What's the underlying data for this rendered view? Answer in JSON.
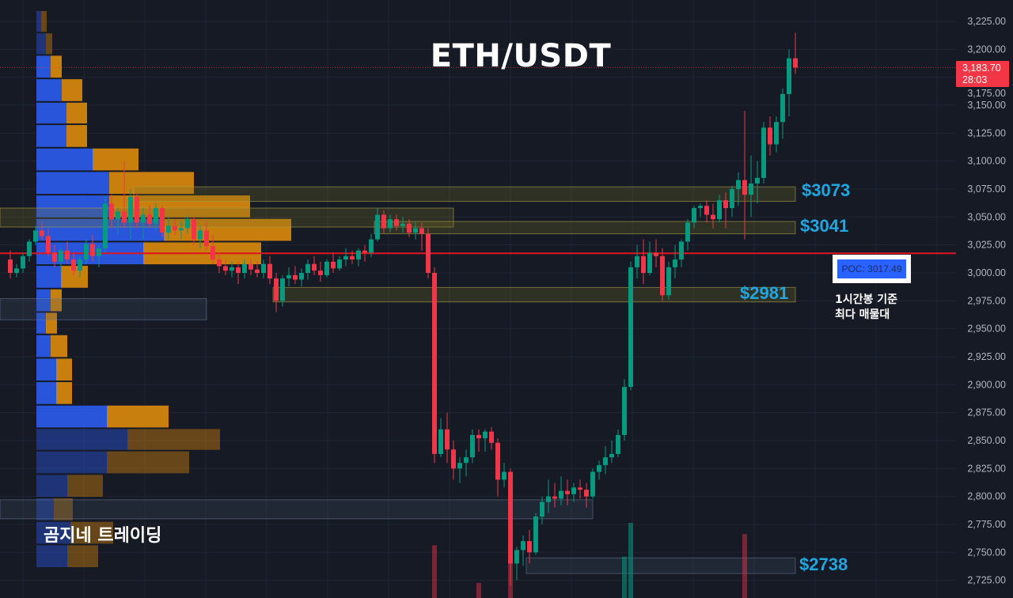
{
  "title": "ETH/USDT",
  "brand": "곰지네 트레이딩",
  "colors": {
    "background": "#161a25",
    "up": "#089981",
    "down": "#f23645",
    "poc_line": "#e0141e",
    "zone_label": "#1ea7e1",
    "buy_volume": "#2855d9",
    "sell_volume": "#c97f0e"
  },
  "price_axis": {
    "ticks": [
      "3,225.00",
      "3,200.00",
      "3,175.00",
      "3,150.00",
      "3,125.00",
      "3,100.00",
      "3,075.00",
      "3,050.00",
      "3,025.00",
      "3,000.00",
      "2,975.00",
      "2,950.00",
      "2,925.00",
      "2,900.00",
      "2,875.00",
      "2,850.00",
      "2,825.00",
      "2,800.00",
      "2,775.00",
      "2,750.00",
      "2,725.00"
    ],
    "current_price": "3,183.70",
    "countdown": "28:03"
  },
  "poc": {
    "value": 3017.49,
    "label": "POC: 3017.49",
    "note_line1": "1시간봉 기준",
    "note_line2": "최다 매물대"
  },
  "zone_labels": [
    {
      "text": "$3073",
      "price": 3073
    },
    {
      "text": "$3041",
      "price": 3041
    },
    {
      "text": "$2981",
      "price": 2981
    },
    {
      "text": "$2738",
      "price": 2738
    }
  ],
  "chart_data": {
    "type": "candlestick",
    "symbol": "ETH/USDT",
    "ylim": [
      2715,
      3235
    ],
    "grid": true,
    "current_price": 3183.7,
    "candles": [
      [
        3012,
        3020,
        2995,
        3000
      ],
      [
        3000,
        3008,
        2996,
        3004
      ],
      [
        3004,
        3018,
        3000,
        3015
      ],
      [
        3015,
        3030,
        3010,
        3028
      ],
      [
        3028,
        3042,
        3025,
        3038
      ],
      [
        3038,
        3045,
        3030,
        3033
      ],
      [
        3033,
        3040,
        3015,
        3018
      ],
      [
        3018,
        3025,
        3005,
        3010
      ],
      [
        3010,
        3022,
        3000,
        3020
      ],
      [
        3020,
        3028,
        3008,
        3012
      ],
      [
        3012,
        3018,
        2998,
        3002
      ],
      [
        3002,
        3015,
        2996,
        3012
      ],
      [
        3012,
        3030,
        3008,
        3026
      ],
      [
        3026,
        3034,
        3010,
        3015
      ],
      [
        3015,
        3025,
        3005,
        3022
      ],
      [
        3022,
        3068,
        3018,
        3062
      ],
      [
        3062,
        3070,
        3040,
        3048
      ],
      [
        3048,
        3058,
        3035,
        3055
      ],
      [
        3055,
        3100,
        3040,
        3045
      ],
      [
        3045,
        3075,
        3030,
        3068
      ],
      [
        3068,
        3072,
        3040,
        3045
      ],
      [
        3045,
        3058,
        3030,
        3052
      ],
      [
        3052,
        3060,
        3040,
        3044
      ],
      [
        3044,
        3062,
        3038,
        3058
      ],
      [
        3058,
        3060,
        3032,
        3036
      ],
      [
        3036,
        3050,
        3030,
        3042
      ],
      [
        3042,
        3048,
        3034,
        3038
      ],
      [
        3038,
        3046,
        3030,
        3040
      ],
      [
        3040,
        3052,
        3035,
        3048
      ],
      [
        3048,
        3050,
        3025,
        3030
      ],
      [
        3030,
        3042,
        3022,
        3038
      ],
      [
        3038,
        3046,
        3020,
        3024
      ],
      [
        3024,
        3034,
        3008,
        3012
      ],
      [
        3012,
        3018,
        3000,
        3006
      ],
      [
        3006,
        3012,
        2998,
        3002
      ],
      [
        3002,
        3010,
        2996,
        3005
      ],
      [
        3005,
        3010,
        2990,
        3000
      ],
      [
        3000,
        3012,
        2995,
        3008
      ],
      [
        3008,
        3012,
        2998,
        3003
      ],
      [
        3003,
        3010,
        2996,
        3000
      ],
      [
        3000,
        3012,
        2995,
        3008
      ],
      [
        3008,
        3015,
        2990,
        2995
      ],
      [
        2995,
        3000,
        2965,
        2975
      ],
      [
        2975,
        2998,
        2970,
        2995
      ],
      [
        2995,
        3005,
        2988,
        2998
      ],
      [
        2998,
        3006,
        2990,
        2994
      ],
      [
        2994,
        3004,
        2988,
        3000
      ],
      [
        3000,
        3012,
        2994,
        3008
      ],
      [
        3008,
        3015,
        2998,
        3002
      ],
      [
        3002,
        3010,
        2992,
        2998
      ],
      [
        2998,
        3012,
        2996,
        3010
      ],
      [
        3010,
        3018,
        3000,
        3004
      ],
      [
        3004,
        3015,
        3002,
        3012
      ],
      [
        3012,
        3022,
        3006,
        3015
      ],
      [
        3015,
        3020,
        3008,
        3012
      ],
      [
        3012,
        3022,
        3006,
        3020
      ],
      [
        3020,
        3025,
        3010,
        3018
      ],
      [
        3018,
        3035,
        3014,
        3030
      ],
      [
        3030,
        3058,
        3028,
        3052
      ],
      [
        3052,
        3056,
        3035,
        3040
      ],
      [
        3040,
        3052,
        3036,
        3048
      ],
      [
        3048,
        3052,
        3038,
        3042
      ],
      [
        3042,
        3050,
        3036,
        3044
      ],
      [
        3044,
        3048,
        3032,
        3036
      ],
      [
        3036,
        3046,
        3030,
        3040
      ],
      [
        3040,
        3045,
        3020,
        3035
      ],
      [
        3035,
        3040,
        2995,
        3000
      ],
      [
        3000,
        3005,
        2830,
        2838
      ],
      [
        2838,
        2870,
        2835,
        2860
      ],
      [
        2860,
        2875,
        2830,
        2842
      ],
      [
        2842,
        2850,
        2815,
        2825
      ],
      [
        2825,
        2835,
        2812,
        2830
      ],
      [
        2830,
        2842,
        2818,
        2835
      ],
      [
        2835,
        2860,
        2830,
        2855
      ],
      [
        2855,
        2860,
        2840,
        2852
      ],
      [
        2852,
        2860,
        2840,
        2858
      ],
      [
        2858,
        2862,
        2842,
        2848
      ],
      [
        2848,
        2852,
        2800,
        2815
      ],
      [
        2815,
        2830,
        2808,
        2822
      ],
      [
        2822,
        2825,
        2720,
        2740
      ],
      [
        2740,
        2755,
        2725,
        2752
      ],
      [
        2752,
        2765,
        2738,
        2760
      ],
      [
        2760,
        2770,
        2740,
        2750
      ],
      [
        2750,
        2785,
        2748,
        2782
      ],
      [
        2782,
        2800,
        2775,
        2795
      ],
      [
        2795,
        2815,
        2785,
        2800
      ],
      [
        2800,
        2812,
        2790,
        2798
      ],
      [
        2798,
        2818,
        2792,
        2805
      ],
      [
        2805,
        2815,
        2792,
        2802
      ],
      [
        2802,
        2812,
        2795,
        2808
      ],
      [
        2808,
        2815,
        2798,
        2806
      ],
      [
        2806,
        2812,
        2790,
        2800
      ],
      [
        2800,
        2825,
        2798,
        2822
      ],
      [
        2822,
        2832,
        2815,
        2828
      ],
      [
        2828,
        2845,
        2820,
        2835
      ],
      [
        2835,
        2850,
        2830,
        2838
      ],
      [
        2838,
        2860,
        2835,
        2855
      ],
      [
        2855,
        2905,
        2850,
        2898
      ],
      [
        2898,
        3010,
        2895,
        3005
      ],
      [
        3005,
        3025,
        2995,
        3015
      ],
      [
        3015,
        3030,
        2990,
        3000
      ],
      [
        3000,
        3028,
        2998,
        3018
      ],
      [
        3018,
        3030,
        3005,
        3015
      ],
      [
        3015,
        3022,
        2975,
        2980
      ],
      [
        2980,
        3010,
        2976,
        3005
      ],
      [
        3005,
        3025,
        2995,
        3012
      ],
      [
        3012,
        3030,
        3005,
        3028
      ],
      [
        3028,
        3048,
        3020,
        3045
      ],
      [
        3045,
        3060,
        3040,
        3058
      ],
      [
        3058,
        3062,
        3050,
        3060
      ],
      [
        3060,
        3065,
        3045,
        3052
      ],
      [
        3052,
        3062,
        3040,
        3048
      ],
      [
        3048,
        3070,
        3045,
        3065
      ],
      [
        3065,
        3072,
        3040,
        3058
      ],
      [
        3058,
        3078,
        3050,
        3075
      ],
      [
        3075,
        3090,
        3060,
        3083
      ],
      [
        3083,
        3145,
        3030,
        3070
      ],
      [
        3070,
        3105,
        3050,
        3080
      ],
      [
        3080,
        3100,
        3062,
        3085
      ],
      [
        3085,
        3135,
        3080,
        3130
      ],
      [
        3130,
        3140,
        3105,
        3115
      ],
      [
        3115,
        3140,
        3108,
        3135
      ],
      [
        3135,
        3165,
        3120,
        3160
      ],
      [
        3160,
        3200,
        3140,
        3192
      ],
      [
        3192,
        3215,
        3178,
        3183.7
      ]
    ],
    "volume_spikes": [
      {
        "index": 67,
        "value": 0.7,
        "dir": "down"
      },
      {
        "index": 74,
        "value": 0.2,
        "dir": "down"
      },
      {
        "index": 79,
        "value": 0.55,
        "dir": "down"
      },
      {
        "index": 97,
        "value": 0.55,
        "dir": "up"
      },
      {
        "index": 98,
        "value": 1.0,
        "dir": "up"
      },
      {
        "index": 116,
        "value": 0.85,
        "dir": "down"
      }
    ],
    "volume_profile": [
      {
        "high": 3235,
        "low": 3215,
        "buy": 6,
        "sell": 7,
        "value_area": false
      },
      {
        "high": 3215,
        "low": 3195,
        "buy": 12,
        "sell": 8,
        "value_area": false
      },
      {
        "high": 3195,
        "low": 3174,
        "buy": 18,
        "sell": 14,
        "value_area": true
      },
      {
        "high": 3174,
        "low": 3153,
        "buy": 32,
        "sell": 26,
        "value_area": true
      },
      {
        "high": 3153,
        "low": 3133,
        "buy": 38,
        "sell": 26,
        "value_area": true
      },
      {
        "high": 3133,
        "low": 3112,
        "buy": 38,
        "sell": 26,
        "value_area": true
      },
      {
        "high": 3112,
        "low": 3091,
        "buy": 71,
        "sell": 58,
        "value_area": true
      },
      {
        "high": 3091,
        "low": 3070,
        "buy": 92,
        "sell": 107,
        "value_area": true
      },
      {
        "high": 3070,
        "low": 3049,
        "buy": 92,
        "sell": 178,
        "value_area": true
      },
      {
        "high": 3049,
        "low": 3028,
        "buy": 161,
        "sell": 161,
        "value_area": true
      },
      {
        "high": 3028,
        "low": 3007,
        "buy": 135,
        "sell": 149,
        "value_area": true
      },
      {
        "high": 3007,
        "low": 2986,
        "buy": 31,
        "sell": 34,
        "value_area": true
      },
      {
        "high": 2986,
        "low": 2965,
        "buy": 18,
        "sell": 14,
        "value_area": true
      },
      {
        "high": 2965,
        "low": 2945,
        "buy": 12,
        "sell": 14,
        "value_area": true
      },
      {
        "high": 2945,
        "low": 2924,
        "buy": 18,
        "sell": 21,
        "value_area": true
      },
      {
        "high": 2924,
        "low": 2903,
        "buy": 25,
        "sell": 20,
        "value_area": true
      },
      {
        "high": 2903,
        "low": 2882,
        "buy": 25,
        "sell": 20,
        "value_area": true
      },
      {
        "high": 2882,
        "low": 2861,
        "buy": 89,
        "sell": 78,
        "value_area": true
      },
      {
        "high": 2861,
        "low": 2841,
        "buy": 115,
        "sell": 117,
        "value_area": false
      },
      {
        "high": 2841,
        "low": 2820,
        "buy": 89,
        "sell": 104,
        "value_area": false
      },
      {
        "high": 2820,
        "low": 2799,
        "buy": 39,
        "sell": 45,
        "value_area": false
      },
      {
        "high": 2799,
        "low": 2778,
        "buy": 22,
        "sell": 24,
        "value_area": false
      },
      {
        "high": 2778,
        "low": 2757,
        "buy": 43,
        "sell": 54,
        "value_area": false
      },
      {
        "high": 2757,
        "low": 2736,
        "buy": 39,
        "sell": 39,
        "value_area": false
      }
    ],
    "zones": [
      {
        "top": 3077,
        "bottom": 3064,
        "start_index": 20,
        "end_index": 124,
        "kind": "supply"
      },
      {
        "top": 3058,
        "bottom": 3041,
        "start_index": null,
        "end_index": 70,
        "kind": "supply"
      },
      {
        "top": 3046,
        "bottom": 3035,
        "start_index": 58,
        "end_index": 124,
        "kind": "supply"
      },
      {
        "top": 2977,
        "bottom": 2958,
        "start_index": null,
        "end_index": 31,
        "kind": "demand"
      },
      {
        "top": 2987,
        "bottom": 2974,
        "start_index": 42,
        "end_index": 124,
        "kind": "supply"
      },
      {
        "top": 2797,
        "bottom": 2780,
        "start_index": null,
        "end_index": 92,
        "kind": "demand"
      },
      {
        "top": 2745,
        "bottom": 2731,
        "start_index": 82,
        "end_index": 124,
        "kind": "demand"
      }
    ]
  }
}
